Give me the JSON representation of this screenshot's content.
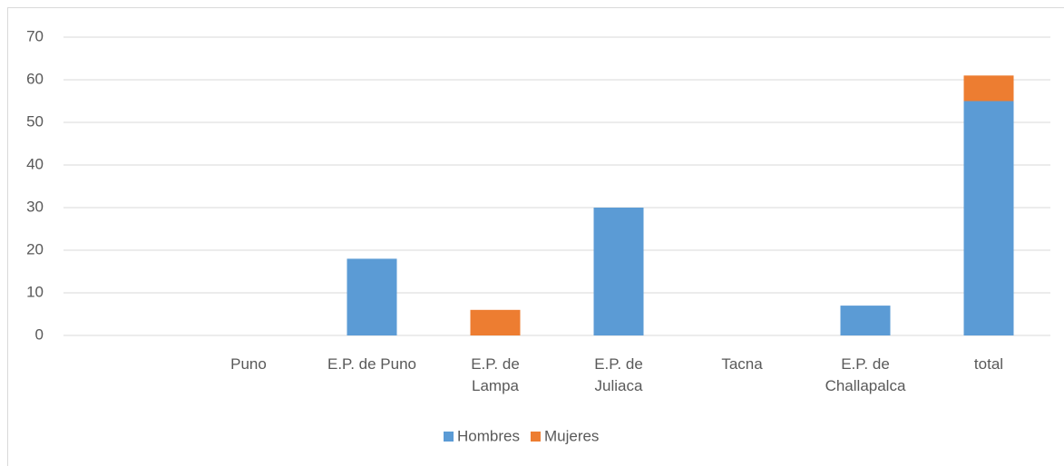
{
  "chart_data": {
    "type": "stacked_bar",
    "categories": [
      null,
      "Puno",
      "E.P. de Puno",
      "E.P. de\nLampa",
      "E.P. de\nJuliaca",
      "Tacna",
      "E.P. de\nChallapalca",
      "total"
    ],
    "series": [
      {
        "name": "Hombres",
        "color": "#5b9bd5",
        "values": [
          0,
          0,
          18,
          0,
          30,
          0,
          7,
          55
        ]
      },
      {
        "name": "Mujeres",
        "color": "#ed7d31",
        "values": [
          0,
          0,
          0,
          6,
          0,
          0,
          0,
          6
        ]
      }
    ],
    "ylim": [
      0,
      70
    ],
    "yticks": [
      0,
      10,
      20,
      30,
      40,
      50,
      60,
      70
    ],
    "grid": true,
    "legend": "bottom"
  }
}
